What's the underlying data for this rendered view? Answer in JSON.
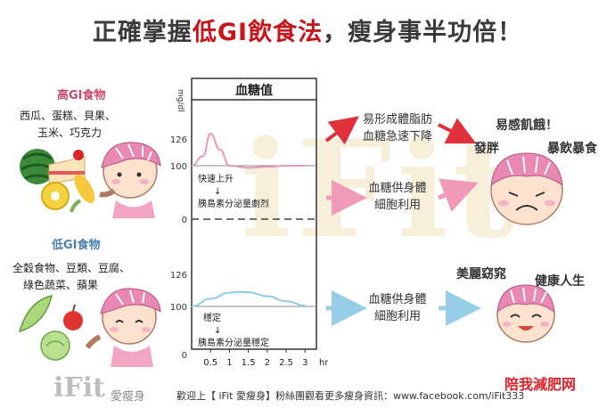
{
  "title": {
    "prefix": "正確掌握",
    "highlight": "低GI飲食法",
    "suffix": "，瘦身事半功倍！"
  },
  "high_gi": {
    "heading": "高GI食物",
    "foods_line1": "西瓜、蛋糕、貝果、",
    "foods_line2": "玉米、巧克力"
  },
  "low_gi": {
    "heading": "低GI食物",
    "foods_line1": "全穀食物、豆類、豆腐、",
    "foods_line2": "綠色蔬菜、蘋果"
  },
  "chart": {
    "title": "血糖值",
    "ylabel": "mg/dl",
    "xlabel": "hr",
    "high_ticks": [
      "126",
      "100"
    ],
    "zero_tick": "0",
    "low_ticks": [
      "126",
      "100",
      "0"
    ],
    "x_ticks": [
      "0.5",
      "1",
      "1.5",
      "2",
      "2.5",
      "3"
    ],
    "high_note_1": "快速上升",
    "high_note_arrow": "↓",
    "high_note_2": "胰島素分泌量劇烈",
    "low_note_1": "穩定",
    "low_note_arrow": "↓",
    "low_note_2": "胰島素分泌量穩定",
    "colors": {
      "high_curve": "#e99ab8",
      "low_curve": "#8fcbe6"
    }
  },
  "chart_data": [
    {
      "type": "line",
      "series": [
        {
          "x": [
            0,
            0.3,
            0.5,
            0.75,
            1,
            1.5,
            2,
            2.5,
            3
          ],
          "y": [
            100,
            118,
            160,
            130,
            100,
            96,
            98,
            100,
            100
          ]
        }
      ],
      "ylim": [
        0,
        180
      ],
      "xlabel": "hr",
      "ylabel": "mg/dl"
    },
    {
      "type": "line",
      "series": [
        {
          "x": [
            0,
            0.5,
            1,
            1.25,
            1.5,
            2,
            2.5,
            3
          ],
          "y": [
            100,
            118,
            132,
            134,
            133,
            124,
            112,
            102
          ]
        }
      ],
      "ylim": [
        0,
        180
      ],
      "xlabel": "hr",
      "ylabel": "mg/dl"
    }
  ],
  "effects": {
    "fat_line1": "易形成體脂肪",
    "fat_line2": "血糖急速下降",
    "energy1_line1": "血糖供身體",
    "energy1_line2": "細胞利用",
    "energy2_line1": "血糖供身體",
    "energy2_line2": "細胞利用"
  },
  "results": {
    "hungry": "易感飢餓！",
    "fat": "發胖",
    "binge": "暴飲暴食",
    "beauty": "美麗窈窕",
    "healthy": "健康人生"
  },
  "watermark": "iFit",
  "footer": {
    "logo": "iFit",
    "logo_cn": "愛瘦身",
    "message": "歡迎上【 iFit 愛瘦身】粉絲團觀看更多瘦身資訊：www.facebook.com/iFit333",
    "stamp": "陪我減肥网"
  }
}
